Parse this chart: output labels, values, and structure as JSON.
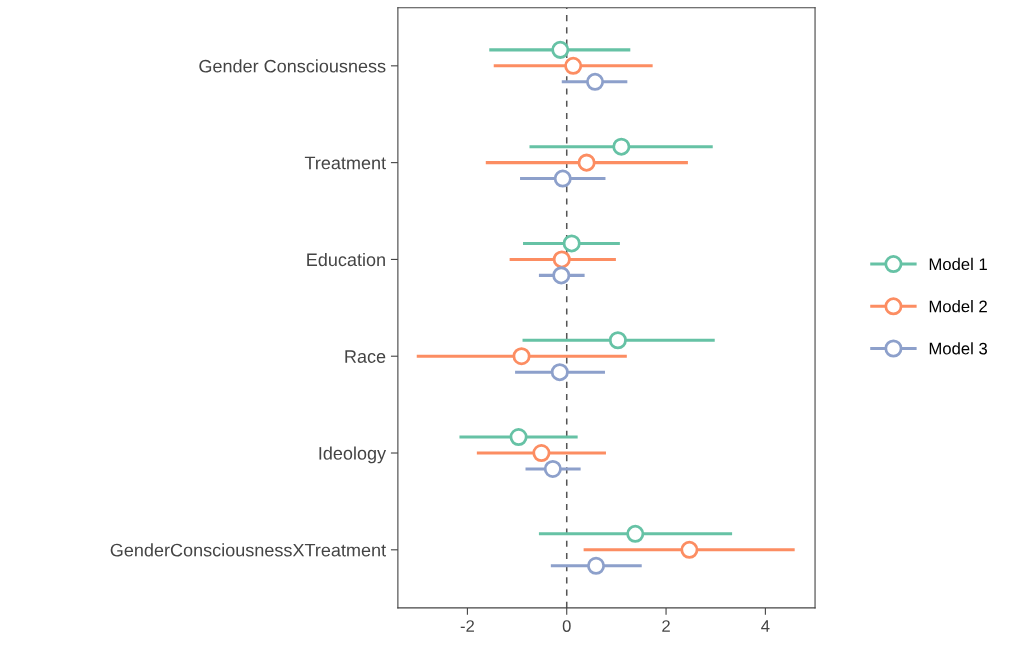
{
  "chart_data": {
    "type": "scatter",
    "orientation": "horizontal",
    "categories": [
      "Gender Consciousness",
      "Treatment",
      "Education",
      "Race",
      "Ideology",
      "GenderConsciousnessXTreatment"
    ],
    "series": [
      {
        "name": "Model 1",
        "color": "#66c2a5",
        "values": [
          -0.13,
          1.1,
          0.1,
          1.03,
          -0.97,
          1.38
        ],
        "errors": [
          [
            -1.56,
            1.28
          ],
          [
            -0.75,
            2.94
          ],
          [
            -0.88,
            1.07
          ],
          [
            -0.89,
            2.98
          ],
          [
            -2.16,
            0.22
          ],
          [
            -0.56,
            3.33
          ]
        ]
      },
      {
        "name": "Model 2",
        "color": "#fc8d62",
        "values": [
          0.13,
          0.4,
          -0.1,
          -0.91,
          -0.51,
          2.47
        ],
        "errors": [
          [
            -1.47,
            1.73
          ],
          [
            -1.63,
            2.44
          ],
          [
            -1.15,
            0.99
          ],
          [
            -3.02,
            1.21
          ],
          [
            -1.81,
            0.79
          ],
          [
            0.34,
            4.59
          ]
        ]
      },
      {
        "name": "Model 3",
        "color": "#8da0cb",
        "values": [
          0.57,
          -0.08,
          -0.11,
          -0.14,
          -0.28,
          0.59
        ],
        "errors": [
          [
            -0.1,
            1.22
          ],
          [
            -0.94,
            0.78
          ],
          [
            -0.56,
            0.36
          ],
          [
            -1.04,
            0.77
          ],
          [
            -0.83,
            0.28
          ],
          [
            -0.32,
            1.51
          ]
        ]
      }
    ],
    "xlim": [
      -3.4,
      5.0
    ],
    "xticks": [
      -2,
      0,
      2,
      4
    ],
    "ref_lines": [
      {
        "axis": "x",
        "value": 0,
        "color": "#555555",
        "line_style": "dashed"
      }
    ],
    "grid": false,
    "legend": "right",
    "marker": "circle"
  }
}
